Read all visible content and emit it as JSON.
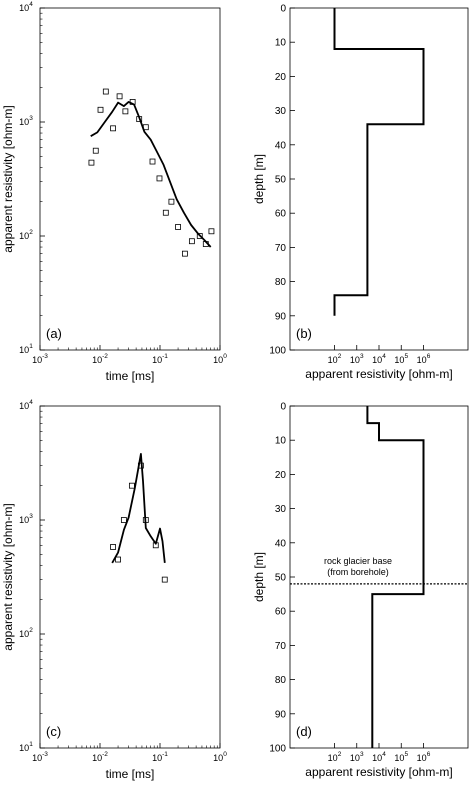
{
  "chart_data": [
    {
      "panel_id": "a",
      "type": "scatter",
      "panel_label": "(a)",
      "xlabel": "time [ms]",
      "ylabel": "apparent resistivity [ohm-m]",
      "xscale": "log",
      "yscale": "log",
      "xlim": [
        0.001,
        1
      ],
      "ylim": [
        10,
        10000
      ],
      "x_ticks": [
        "10^-3",
        "10^-2",
        "10^-1",
        "10^0"
      ],
      "y_ticks": [
        "10^1",
        "10^2",
        "10^3",
        "10^4"
      ],
      "grid": false,
      "series": [
        {
          "mark": "square",
          "x": [
            0.0072,
            0.0085,
            0.0102,
            0.0125,
            0.0165,
            0.0212,
            0.0265,
            0.035,
            0.045,
            0.058,
            0.075,
            0.098,
            0.125,
            0.155,
            0.2,
            0.26,
            0.34,
            0.46,
            0.58,
            0.72
          ],
          "y": [
            440,
            560,
            1280,
            1850,
            880,
            1680,
            1240,
            1500,
            1060,
            900,
            450,
            320,
            160,
            200,
            120,
            70,
            90,
            100,
            85,
            110
          ]
        },
        {
          "mark": "line",
          "x": [
            0.007,
            0.009,
            0.012,
            0.016,
            0.02,
            0.025,
            0.03,
            0.037,
            0.045,
            0.055,
            0.07,
            0.09,
            0.115,
            0.15,
            0.19,
            0.25,
            0.33,
            0.43,
            0.55,
            0.7
          ],
          "y": [
            750,
            810,
            1000,
            1230,
            1480,
            1380,
            1500,
            1420,
            1100,
            820,
            700,
            540,
            420,
            290,
            210,
            160,
            125,
            105,
            92,
            80
          ]
        }
      ]
    },
    {
      "panel_id": "b",
      "type": "line",
      "panel_label": "(b)",
      "xlabel": "apparent resistivity [ohm-m]",
      "ylabel": "depth [m]",
      "xscale": "log",
      "xlim": [
        1,
        100000000
      ],
      "ylim": [
        0,
        100
      ],
      "y_inverted": true,
      "x_ticks": [
        "10^2",
        "10^3",
        "10^4",
        "10^5",
        "10^6"
      ],
      "y_ticks": [
        0,
        10,
        20,
        30,
        40,
        50,
        60,
        70,
        80,
        90,
        100
      ],
      "grid": false,
      "series": [
        {
          "mark": "step",
          "x": [
            100,
            100,
            1000000,
            1000000,
            3000,
            3000,
            100,
            100
          ],
          "y": [
            0,
            12,
            12,
            34,
            34,
            84,
            84,
            90
          ]
        }
      ]
    },
    {
      "panel_id": "c",
      "type": "scatter",
      "panel_label": "(c)",
      "xlabel": "time [ms]",
      "ylabel": "apparent resistivity [ohm-m]",
      "xscale": "log",
      "yscale": "log",
      "xlim": [
        0.001,
        1
      ],
      "ylim": [
        10,
        10000
      ],
      "x_ticks": [
        "10^-3",
        "10^-2",
        "10^-1",
        "10^0"
      ],
      "y_ticks": [
        "10^1",
        "10^2",
        "10^3",
        "10^4"
      ],
      "grid": false,
      "series": [
        {
          "mark": "square",
          "x": [
            0.0165,
            0.02,
            0.025,
            0.034,
            0.048,
            0.058,
            0.085,
            0.12
          ],
          "y": [
            580,
            450,
            1000,
            2000,
            3000,
            1000,
            600,
            300
          ]
        },
        {
          "mark": "line",
          "x": [
            0.016,
            0.02,
            0.025,
            0.03,
            0.038,
            0.048,
            0.052,
            0.058,
            0.07,
            0.085,
            0.1,
            0.11,
            0.12
          ],
          "y": [
            420,
            520,
            820,
            1050,
            1900,
            3800,
            2200,
            850,
            720,
            620,
            840,
            650,
            420
          ]
        }
      ]
    },
    {
      "panel_id": "d",
      "type": "line",
      "panel_label": "(d)",
      "xlabel": "apparent resistivity [ohm-m]",
      "ylabel": "depth [m]",
      "xscale": "log",
      "xlim": [
        1,
        100000000
      ],
      "ylim": [
        0,
        100
      ],
      "y_inverted": true,
      "x_ticks": [
        "10^2",
        "10^3",
        "10^4",
        "10^5",
        "10^6"
      ],
      "y_ticks": [
        0,
        10,
        20,
        30,
        40,
        50,
        60,
        70,
        80,
        90,
        100
      ],
      "grid": false,
      "series": [
        {
          "mark": "step",
          "x": [
            3000,
            3000,
            10000,
            10000,
            1000000,
            1000000,
            5000,
            5000
          ],
          "y": [
            0,
            5,
            5,
            10,
            10,
            55,
            55,
            100
          ]
        }
      ],
      "annotation": {
        "text_line1": "rock glacier base",
        "text_line2": "(from borehole)",
        "depth": 52
      }
    }
  ]
}
